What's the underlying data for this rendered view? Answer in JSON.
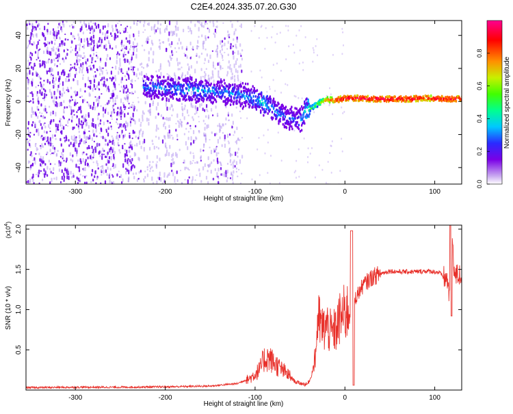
{
  "title": "C2E4.2024.335.07.20.G30",
  "colors": {
    "background": "#ffffff",
    "axis": "#000000",
    "snr_line": "#e8302a",
    "spectrogram_dots": "#6a00e6",
    "spectrogram_light": "#b89cf0",
    "colormap": [
      "#ffffff",
      "#c8a8f0",
      "#7a00e6",
      "#2a2aff",
      "#00c8ff",
      "#00ff90",
      "#40ff00",
      "#f0f000",
      "#ff8000",
      "#ff0000",
      "#ff0090"
    ]
  },
  "chart_data": [
    {
      "type": "heatmap",
      "xlabel": "Height of straight line (km)",
      "ylabel": "Frequency (Hz)",
      "xlim": [
        -355,
        130
      ],
      "ylim": [
        -50,
        49
      ],
      "xticks": [
        -300,
        -200,
        -100,
        0,
        100
      ],
      "yticks": [
        -40,
        -20,
        0,
        20,
        40
      ],
      "colorbar": {
        "label": "Normalized spectral amplitude",
        "range": [
          0.0,
          1.0
        ],
        "ticks": [
          0.0,
          0.2,
          0.4,
          0.6,
          0.8
        ]
      },
      "ridge": {
        "x": [
          -225,
          -200,
          -175,
          -150,
          -125,
          -110,
          -95,
          -85,
          -75,
          -62,
          -50,
          -45,
          -38,
          -30,
          -20,
          -10,
          0,
          10,
          30,
          50,
          70,
          90,
          110,
          130
        ],
        "freq": [
          9,
          8,
          7,
          6,
          5,
          3,
          0,
          -3,
          -7,
          -10,
          -11,
          -6,
          -4,
          -1,
          1,
          1,
          2,
          2,
          1.5,
          1.5,
          1.5,
          2,
          1.5,
          1.5
        ],
        "amplitude": [
          0.3,
          0.3,
          0.35,
          0.3,
          0.3,
          0.3,
          0.35,
          0.35,
          0.3,
          0.25,
          0.3,
          0.4,
          0.5,
          0.6,
          0.8,
          0.9,
          0.95,
          0.95,
          0.95,
          0.95,
          0.95,
          0.9,
          0.95,
          0.9
        ]
      },
      "noise_region_x": [
        -355,
        -115
      ]
    },
    {
      "type": "line",
      "xlabel": "Height of straight line (km)",
      "ylabel": "SNR (10 * v/v)",
      "y_multiplier": "(x10^4)",
      "xlim": [
        -355,
        130
      ],
      "ylim": [
        0,
        20500
      ],
      "xticks": [
        -300,
        -200,
        -100,
        0,
        100
      ],
      "yticks": [
        5000,
        10000,
        15000,
        20000
      ],
      "ytick_labels": [
        "0.5",
        "1.0",
        "1.5",
        "2.0"
      ],
      "series": [
        {
          "x": [
            -355,
            -300,
            -250,
            -200,
            -150,
            -120,
            -105,
            -95,
            -90,
            -85,
            -80,
            -70,
            -62,
            -55,
            -48,
            -42,
            -38,
            -33,
            -30,
            -27,
            -24,
            -20,
            -15,
            -10,
            -5,
            0,
            5,
            8,
            12,
            20,
            30,
            40,
            50,
            60,
            70,
            80,
            90,
            100,
            105,
            110,
            115,
            117,
            119,
            122,
            130
          ],
          "y": [
            300,
            350,
            350,
            400,
            500,
            800,
            1500,
            2500,
            3800,
            4000,
            3500,
            2500,
            1800,
            1000,
            800,
            700,
            1500,
            4000,
            9000,
            8000,
            7500,
            8000,
            7000,
            7500,
            9000,
            9500,
            10000,
            11000,
            11500,
            13000,
            14000,
            14500,
            14800,
            14700,
            14700,
            14700,
            14800,
            14700,
            14600,
            14000,
            13500,
            10000,
            20500,
            14200,
            14300
          ]
        }
      ]
    }
  ]
}
